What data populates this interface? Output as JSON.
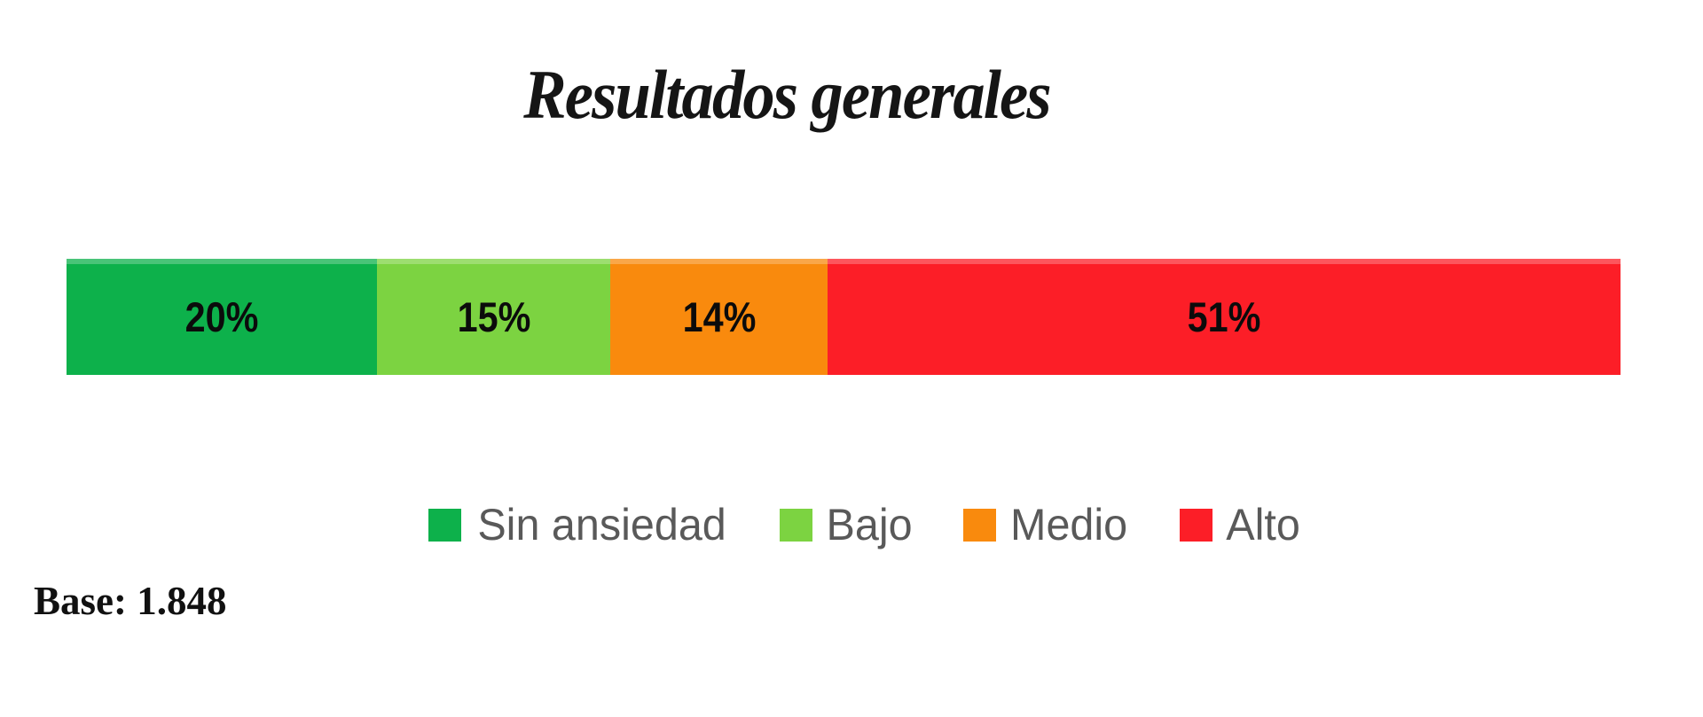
{
  "chart_data": {
    "type": "bar",
    "stacked": true,
    "orientation": "horizontal",
    "title": "Resultados generales",
    "categories": [
      "Sin ansiedad",
      "Bajo",
      "Medio",
      "Alto"
    ],
    "values": [
      20,
      15,
      14,
      51
    ],
    "labels": [
      "20%",
      "15%",
      "14%",
      "51%"
    ],
    "unit": "%",
    "xlim": [
      0,
      100
    ],
    "colors": [
      "#0db14b",
      "#7cd341",
      "#f98a0d",
      "#fc1e27"
    ],
    "label_color": "#0b0b0b",
    "legend_position": "bottom",
    "legend_text_color": "#595959",
    "grid": false,
    "axes_visible": false
  },
  "base_note": "Base: 1.848"
}
